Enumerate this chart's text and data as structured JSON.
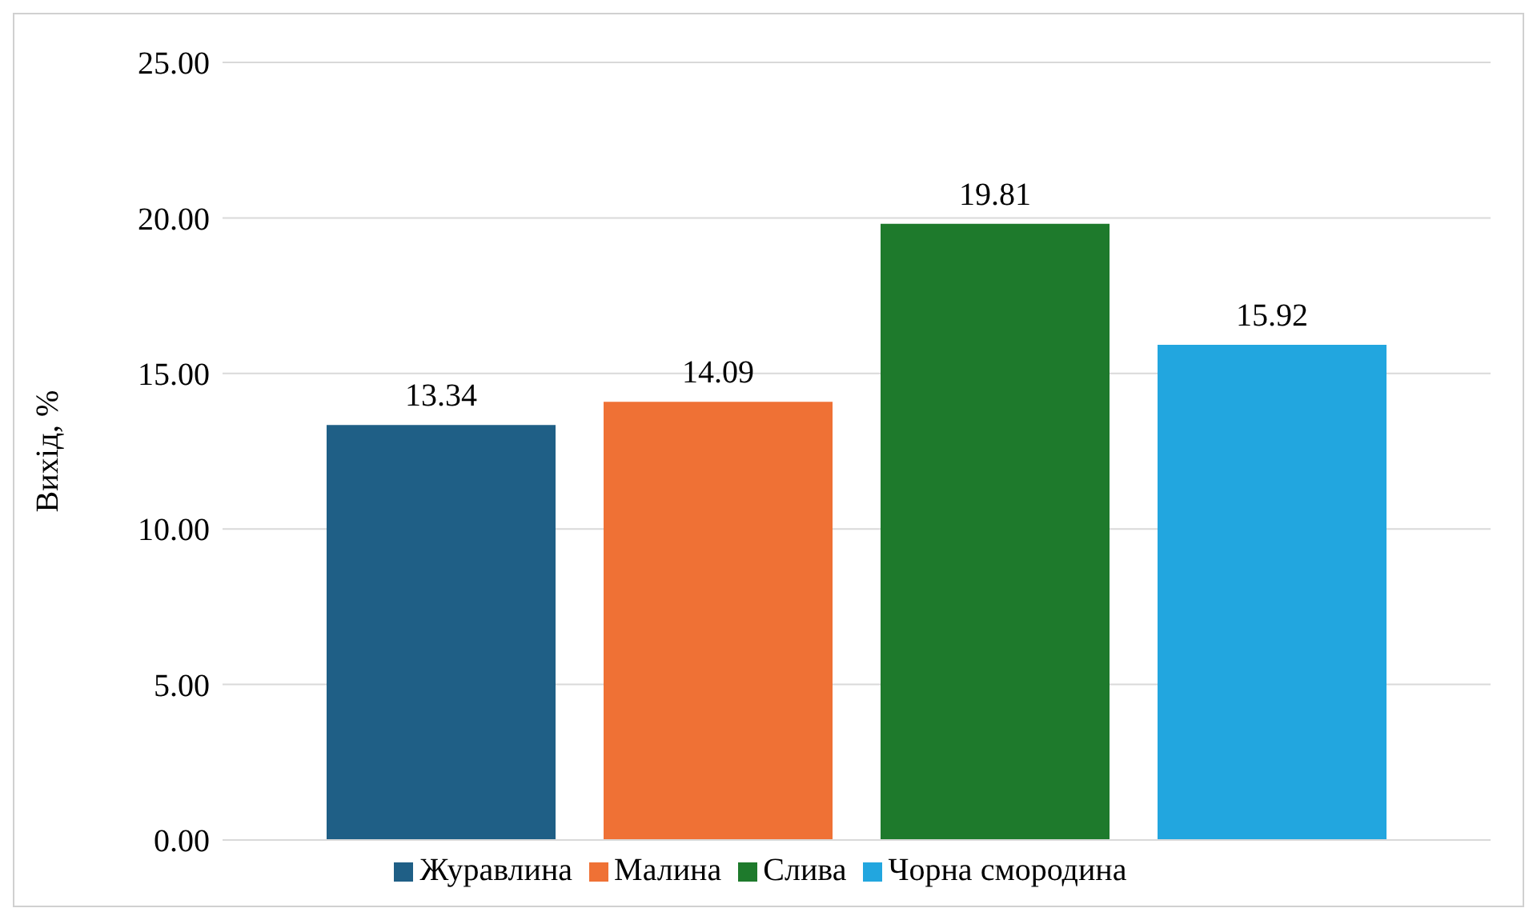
{
  "chart_data": {
    "type": "bar",
    "ylabel": "Вихід, %",
    "categories": [
      null
    ],
    "series": [
      {
        "name": "Журавлина",
        "color": "#1f5f86",
        "values": [
          13.34
        ]
      },
      {
        "name": "Малина",
        "color": "#ef7135",
        "values": [
          14.09
        ]
      },
      {
        "name": "Слива",
        "color": "#1e7a2c",
        "values": [
          19.81
        ]
      },
      {
        "name": "Чорна смородина",
        "color": "#22a6df",
        "values": [
          15.92
        ]
      }
    ],
    "ylim": [
      0,
      25
    ],
    "yticks": [
      {
        "value": 0,
        "label": "0.00"
      },
      {
        "value": 5,
        "label": "5.00"
      },
      {
        "value": 10,
        "label": "10.00"
      },
      {
        "value": 15,
        "label": "15.00"
      },
      {
        "value": 20,
        "label": "20.00"
      },
      {
        "value": 25,
        "label": "25.00"
      }
    ],
    "grid": "y",
    "legend": "bottom",
    "data_labels": true,
    "tick_labels": "y"
  }
}
